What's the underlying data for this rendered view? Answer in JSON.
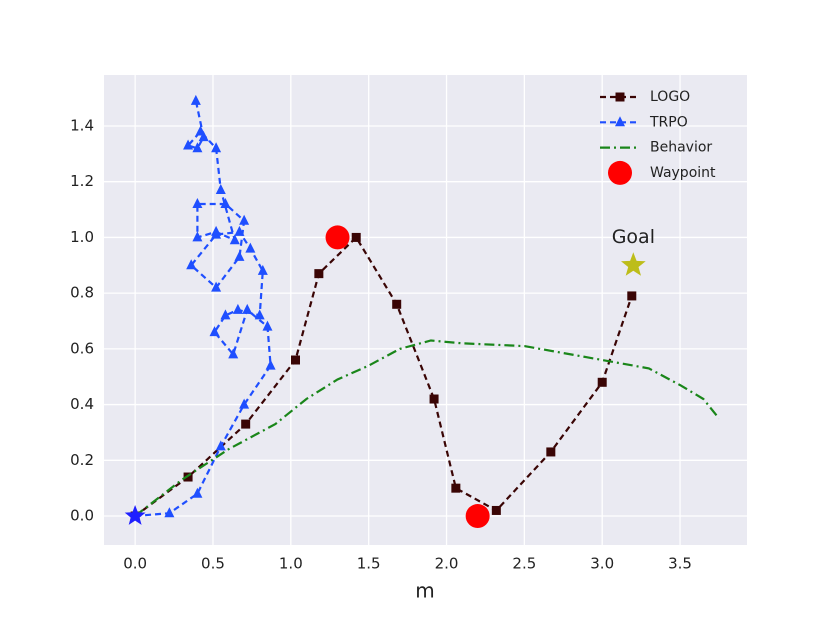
{
  "chart_data": {
    "type": "line",
    "xlabel": "m",
    "xlim": [
      -0.2,
      3.93
    ],
    "ylim": [
      -0.104,
      1.583
    ],
    "xticks": [
      {
        "value": 0,
        "label": "0.0"
      },
      {
        "value": 0.5,
        "label": "0.5"
      },
      {
        "value": 1,
        "label": "1.0"
      },
      {
        "value": 1.5,
        "label": "1.5"
      },
      {
        "value": 2,
        "label": "2.0"
      },
      {
        "value": 2.5,
        "label": "2.5"
      },
      {
        "value": 3,
        "label": "3.0"
      },
      {
        "value": 3.5,
        "label": "3.5"
      }
    ],
    "yticks": [
      {
        "value": 0,
        "label": "0.0"
      },
      {
        "value": 0.2,
        "label": "0.2"
      },
      {
        "value": 0.4,
        "label": "0.4"
      },
      {
        "value": 0.6,
        "label": "0.6"
      },
      {
        "value": 0.8,
        "label": "0.8"
      },
      {
        "value": 1,
        "label": "1.0"
      },
      {
        "value": 1.2,
        "label": "1.2"
      },
      {
        "value": 1.4,
        "label": "1.4"
      }
    ],
    "grid": true,
    "legend": "upper right",
    "series": [
      {
        "name": "LOGO",
        "color": "#3a0505",
        "dash": "6,4",
        "marker": "square",
        "x": [
          0,
          0.34,
          0.71,
          1.03,
          1.18,
          1.42,
          1.68,
          1.92,
          2.06,
          2.32,
          2.67,
          3.0,
          3.19
        ],
        "values": [
          0,
          0.14,
          0.33,
          0.56,
          0.87,
          1.0,
          0.76,
          0.42,
          0.1,
          0.02,
          0.23,
          0.48,
          0.79
        ]
      },
      {
        "name": "TRPO",
        "color": "#1f4fff",
        "dash": "6,4",
        "marker": "triangle",
        "x": [
          0,
          0.22,
          0.4,
          0.55,
          0.7,
          0.87,
          0.85,
          0.72,
          0.63,
          0.51,
          0.58,
          0.66,
          0.8,
          0.82,
          0.74,
          0.67,
          0.52,
          0.36,
          0.52,
          0.67,
          0.7,
          0.58,
          0.4,
          0.4,
          0.52,
          0.64,
          0.55,
          0.52,
          0.42,
          0.34,
          0.4,
          0.44,
          0.39
        ],
        "values": [
          0,
          0.01,
          0.08,
          0.25,
          0.4,
          0.54,
          0.68,
          0.74,
          0.58,
          0.66,
          0.72,
          0.74,
          0.72,
          0.88,
          0.96,
          1.02,
          1.01,
          0.9,
          0.82,
          0.93,
          1.06,
          1.12,
          1.12,
          1.0,
          1.02,
          0.99,
          1.17,
          1.32,
          1.38,
          1.33,
          1.32,
          1.36,
          1.49
        ]
      },
      {
        "name": "Behavior",
        "color": "#1a861a",
        "dash": "10,4,2,4",
        "marker": "none",
        "x": [
          0,
          0.3,
          0.6,
          0.9,
          1.1,
          1.3,
          1.5,
          1.7,
          1.9,
          2.1,
          2.5,
          2.9,
          3.3,
          3.5,
          3.65,
          3.75
        ],
        "values": [
          0,
          0.13,
          0.24,
          0.33,
          0.42,
          0.49,
          0.54,
          0.6,
          0.63,
          0.62,
          0.61,
          0.57,
          0.53,
          0.47,
          0.42,
          0.35
        ]
      },
      {
        "name": "Waypoint",
        "color": "#ff0000",
        "dash": "none",
        "marker": "circle",
        "x": [
          1.3,
          2.2
        ],
        "values": [
          1.0,
          0.0
        ]
      }
    ],
    "start": {
      "x": 0,
      "y": 0,
      "color": "#1f1fff"
    },
    "goal": {
      "x": 3.2,
      "y": 0.9,
      "label": "Goal",
      "color": "#bdbd1a"
    }
  }
}
